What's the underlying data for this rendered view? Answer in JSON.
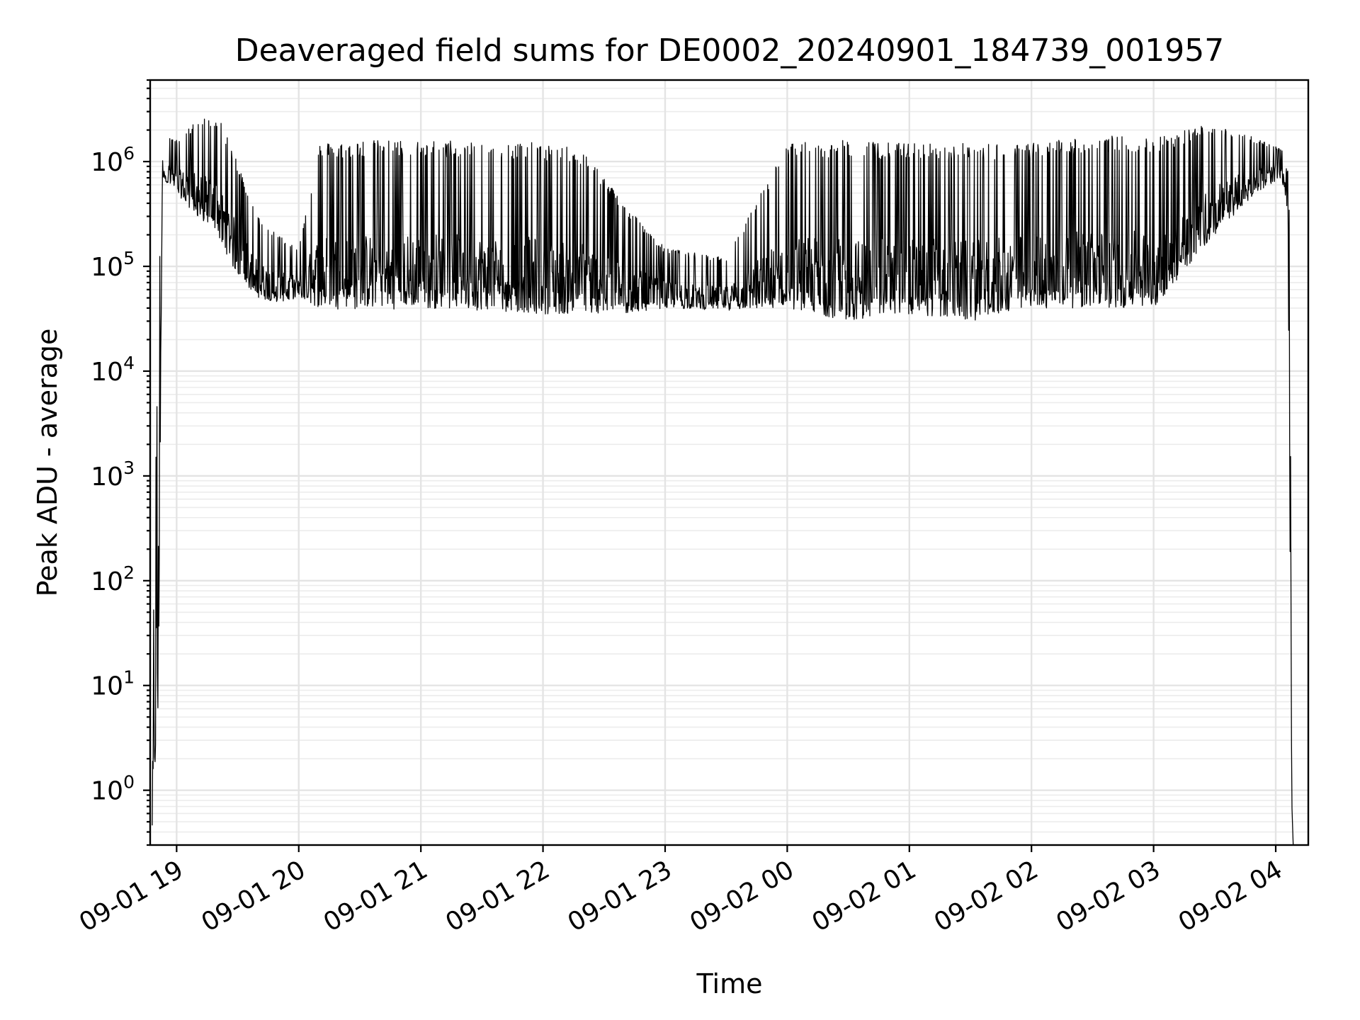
{
  "chart_data": {
    "type": "line",
    "title": "Deaveraged field sums for DE0002_20240901_184739_001957",
    "xlabel": "Time",
    "ylabel": "Peak ADU - average",
    "yscale": "log",
    "ylim": [
      0.3,
      6000000
    ],
    "xlim": [
      "2024-09-01 18:47",
      "2024-09-02 04:16"
    ],
    "grid": true,
    "x_ticks": [
      {
        "value": "2024-09-01 19:00",
        "label": "09-01 19"
      },
      {
        "value": "2024-09-01 20:00",
        "label": "09-01 20"
      },
      {
        "value": "2024-09-01 21:00",
        "label": "09-01 21"
      },
      {
        "value": "2024-09-01 22:00",
        "label": "09-01 22"
      },
      {
        "value": "2024-09-01 23:00",
        "label": "09-01 23"
      },
      {
        "value": "2024-09-02 00:00",
        "label": "09-02 00"
      },
      {
        "value": "2024-09-02 01:00",
        "label": "09-02 01"
      },
      {
        "value": "2024-09-02 02:00",
        "label": "09-02 02"
      },
      {
        "value": "2024-09-02 03:00",
        "label": "09-02 03"
      },
      {
        "value": "2024-09-02 04:00",
        "label": "09-02 04"
      }
    ],
    "y_ticks": [
      {
        "value": 1,
        "base": "10",
        "exp": "0"
      },
      {
        "value": 10,
        "base": "10",
        "exp": "1"
      },
      {
        "value": 100,
        "base": "10",
        "exp": "2"
      },
      {
        "value": 1000,
        "base": "10",
        "exp": "3"
      },
      {
        "value": 10000,
        "base": "10",
        "exp": "4"
      },
      {
        "value": 100000,
        "base": "10",
        "exp": "5"
      },
      {
        "value": 1000000,
        "base": "10",
        "exp": "6"
      }
    ],
    "series": [
      {
        "color": "#000000",
        "envelope": [
          {
            "t": "2024-09-01 18:48",
            "low": 0.3,
            "high": 7
          },
          {
            "t": "2024-09-01 18:51",
            "low": 5,
            "high": 50000
          },
          {
            "t": "2024-09-01 18:53",
            "low": 700000,
            "high": 1900000
          },
          {
            "t": "2024-09-01 19:00",
            "low": 500000,
            "high": 1600000
          },
          {
            "t": "2024-09-01 19:10",
            "low": 300000,
            "high": 2500000
          },
          {
            "t": "2024-09-01 19:20",
            "low": 200000,
            "high": 2800000
          },
          {
            "t": "2024-09-01 19:30",
            "low": 80000,
            "high": 1000000
          },
          {
            "t": "2024-09-01 19:40",
            "low": 50000,
            "high": 300000
          },
          {
            "t": "2024-09-01 19:50",
            "low": 45000,
            "high": 200000
          },
          {
            "t": "2024-09-01 20:00",
            "low": 50000,
            "high": 150000
          },
          {
            "t": "2024-09-01 20:10",
            "low": 40000,
            "high": 1500000
          },
          {
            "t": "2024-09-01 20:30",
            "low": 38000,
            "high": 1600000
          },
          {
            "t": "2024-09-01 21:00",
            "low": 40000,
            "high": 1600000
          },
          {
            "t": "2024-09-01 21:30",
            "low": 38000,
            "high": 1600000
          },
          {
            "t": "2024-09-01 22:00",
            "low": 35000,
            "high": 1500000
          },
          {
            "t": "2024-09-01 22:20",
            "low": 35000,
            "high": 1300000
          },
          {
            "t": "2024-09-01 22:40",
            "low": 35000,
            "high": 400000
          },
          {
            "t": "2024-09-01 23:00",
            "low": 40000,
            "high": 150000
          },
          {
            "t": "2024-09-01 23:30",
            "low": 38000,
            "high": 120000
          },
          {
            "t": "2024-09-02 00:00",
            "low": 40000,
            "high": 1500000
          },
          {
            "t": "2024-09-02 00:30",
            "low": 30000,
            "high": 1600000
          },
          {
            "t": "2024-09-02 01:00",
            "low": 35000,
            "high": 1500000
          },
          {
            "t": "2024-09-02 01:30",
            "low": 30000,
            "high": 1500000
          },
          {
            "t": "2024-09-02 02:00",
            "low": 40000,
            "high": 1500000
          },
          {
            "t": "2024-09-02 02:30",
            "low": 40000,
            "high": 1800000
          },
          {
            "t": "2024-09-02 03:00",
            "low": 40000,
            "high": 1700000
          },
          {
            "t": "2024-09-02 03:30",
            "low": 200000,
            "high": 2400000
          },
          {
            "t": "2024-09-02 03:50",
            "low": 500000,
            "high": 1700000
          },
          {
            "t": "2024-09-02 04:03",
            "low": 700000,
            "high": 1300000
          },
          {
            "t": "2024-09-02 04:06",
            "low": 300000,
            "high": 800000
          },
          {
            "t": "2024-09-02 04:08",
            "low": 0.3,
            "high": 100000
          }
        ]
      }
    ]
  }
}
